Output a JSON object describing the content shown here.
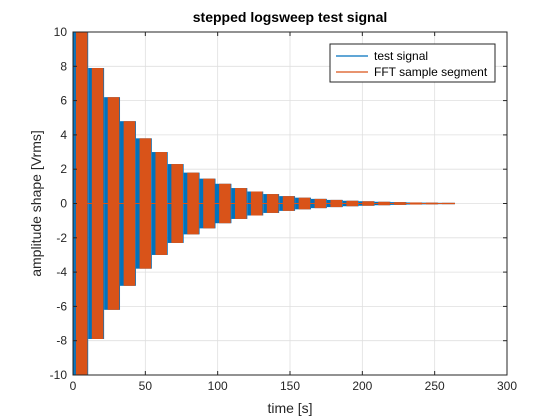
{
  "chart_data": {
    "type": "line",
    "title": "stepped logsweep test signal",
    "xlabel": "time [s]",
    "ylabel": "amplitude shape [Vrms]",
    "xlim": [
      0,
      300
    ],
    "ylim": [
      -10,
      10
    ],
    "xticks": [
      0,
      50,
      100,
      150,
      200,
      250,
      300
    ],
    "yticks": [
      -10,
      -8,
      -6,
      -4,
      -2,
      0,
      2,
      4,
      6,
      8,
      10
    ],
    "grid": true,
    "legend_position": "top-right",
    "series": [
      {
        "name": "test signal",
        "color": "#0072BD",
        "kind": "envelope",
        "steps": [
          {
            "t0": 0,
            "t1": 1,
            "amp": 10
          },
          {
            "t0": 1,
            "t1": 10.5,
            "amp": 10
          },
          {
            "t0": 10.5,
            "t1": 21.5,
            "amp": 7.9
          },
          {
            "t0": 21.5,
            "t1": 32.5,
            "amp": 6.2
          },
          {
            "t0": 32.5,
            "t1": 43.5,
            "amp": 4.8
          },
          {
            "t0": 43.5,
            "t1": 54.5,
            "amp": 3.8
          },
          {
            "t0": 54.5,
            "t1": 65.5,
            "amp": 3.0
          },
          {
            "t0": 65.5,
            "t1": 76.5,
            "amp": 2.3
          },
          {
            "t0": 76.5,
            "t1": 87.5,
            "amp": 1.8
          },
          {
            "t0": 87.5,
            "t1": 98.5,
            "amp": 1.45
          },
          {
            "t0": 98.5,
            "t1": 109.5,
            "amp": 1.15
          },
          {
            "t0": 109.5,
            "t1": 120.5,
            "amp": 0.9
          },
          {
            "t0": 120.5,
            "t1": 131.5,
            "amp": 0.7
          },
          {
            "t0": 131.5,
            "t1": 142.5,
            "amp": 0.55
          },
          {
            "t0": 142.5,
            "t1": 153.5,
            "amp": 0.43
          },
          {
            "t0": 153.5,
            "t1": 164.5,
            "amp": 0.34
          },
          {
            "t0": 164.5,
            "t1": 175.5,
            "amp": 0.27
          },
          {
            "t0": 175.5,
            "t1": 186.5,
            "amp": 0.21
          },
          {
            "t0": 186.5,
            "t1": 197.5,
            "amp": 0.16
          },
          {
            "t0": 197.5,
            "t1": 208.5,
            "amp": 0.13
          },
          {
            "t0": 208.5,
            "t1": 219.5,
            "amp": 0.1
          },
          {
            "t0": 219.5,
            "t1": 230.5,
            "amp": 0.08
          },
          {
            "t0": 230.5,
            "t1": 241.5,
            "amp": 0.06
          },
          {
            "t0": 241.5,
            "t1": 252.5,
            "amp": 0.05
          },
          {
            "t0": 252.5,
            "t1": 264,
            "amp": 0.04
          }
        ]
      },
      {
        "name": "FFT sample segment",
        "color": "#D95319",
        "kind": "segments",
        "segments": [
          {
            "t0": 2,
            "t1": 10,
            "amp": 10
          },
          {
            "t0": 13,
            "t1": 21,
            "amp": 7.9
          },
          {
            "t0": 24,
            "t1": 32,
            "amp": 6.2
          },
          {
            "t0": 35,
            "t1": 43,
            "amp": 4.8
          },
          {
            "t0": 46,
            "t1": 54,
            "amp": 3.8
          },
          {
            "t0": 57,
            "t1": 65,
            "amp": 3.0
          },
          {
            "t0": 68,
            "t1": 76,
            "amp": 2.3
          },
          {
            "t0": 79,
            "t1": 87,
            "amp": 1.8
          },
          {
            "t0": 90,
            "t1": 98,
            "amp": 1.45
          },
          {
            "t0": 101,
            "t1": 109,
            "amp": 1.15
          },
          {
            "t0": 112,
            "t1": 120,
            "amp": 0.9
          },
          {
            "t0": 123,
            "t1": 131,
            "amp": 0.7
          },
          {
            "t0": 134,
            "t1": 142,
            "amp": 0.55
          },
          {
            "t0": 145,
            "t1": 153,
            "amp": 0.43
          },
          {
            "t0": 156,
            "t1": 164,
            "amp": 0.34
          },
          {
            "t0": 167,
            "t1": 175,
            "amp": 0.27
          },
          {
            "t0": 178,
            "t1": 186,
            "amp": 0.21
          },
          {
            "t0": 189,
            "t1": 197,
            "amp": 0.16
          },
          {
            "t0": 200,
            "t1": 208,
            "amp": 0.13
          },
          {
            "t0": 211,
            "t1": 219,
            "amp": 0.1
          },
          {
            "t0": 222,
            "t1": 230,
            "amp": 0.08
          },
          {
            "t0": 233,
            "t1": 241,
            "amp": 0.06
          },
          {
            "t0": 244,
            "t1": 252,
            "amp": 0.05
          },
          {
            "t0": 255,
            "t1": 264,
            "amp": 0.04
          }
        ]
      }
    ]
  }
}
